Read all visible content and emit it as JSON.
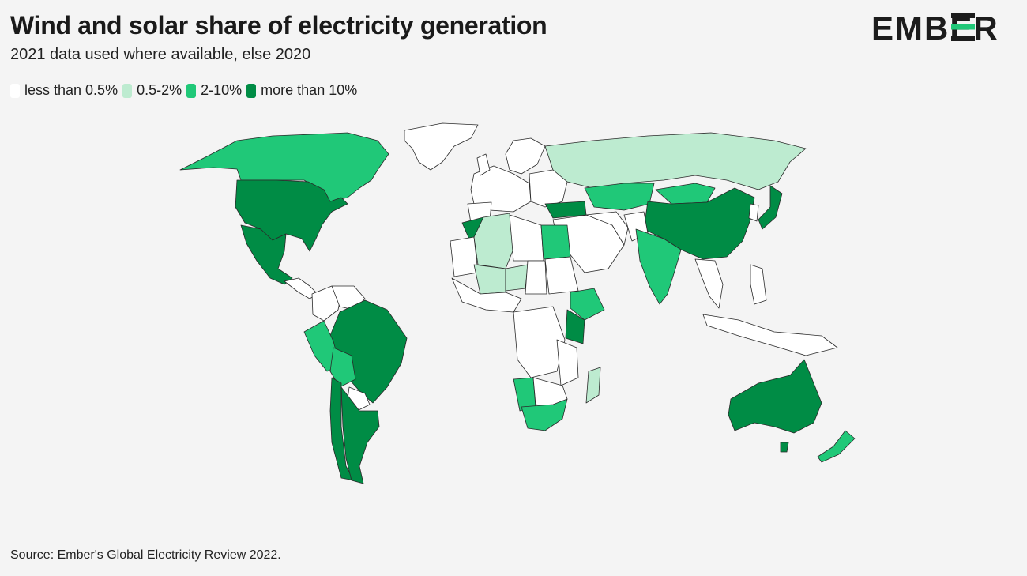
{
  "header": {
    "title": "Wind and solar share of electricity generation",
    "subtitle": "2021 data used where available, else 2020",
    "logo_text": "EMBER"
  },
  "legend": {
    "items": [
      {
        "label": "less than 0.5%",
        "color": "#ffffff"
      },
      {
        "label": "0.5-2%",
        "color": "#bdebd0"
      },
      {
        "label": "2-10%",
        "color": "#20c878"
      },
      {
        "label": "more than 10%",
        "color": "#008c45"
      }
    ]
  },
  "map": {
    "type": "choropleth",
    "bins": [
      "less than 0.5%",
      "0.5-2%",
      "2-10%",
      "more than 10%"
    ],
    "regions": {
      "Canada": "2-10%",
      "USA": "more than 10%",
      "Mexico": "more than 10%",
      "Greenland": "less than 0.5%",
      "Brazil": "more than 10%",
      "Argentina": "more than 10%",
      "Chile": "more than 10%",
      "Peru": "2-10%",
      "Colombia": "less than 0.5%",
      "Venezuela": "less than 0.5%",
      "Bolivia": "2-10%",
      "Paraguay": "less than 0.5%",
      "Uruguay": "more than 10%",
      "Russia": "0.5-2%",
      "China": "more than 10%",
      "India": "2-10%",
      "Kazakhstan": "2-10%",
      "Mongolia": "2-10%",
      "Saudi Arabia": "less than 0.5%",
      "Iran": "less than 0.5%",
      "Turkey": "more than 10%",
      "Japan": "more than 10%",
      "Australia": "more than 10%",
      "New Zealand": "2-10%",
      "Indonesia": "less than 0.5%",
      "Algeria": "0.5-2%",
      "Libya": "less than 0.5%",
      "Egypt": "2-10%",
      "Morocco": "more than 10%",
      "Kenya": "more than 10%",
      "Ethiopia": "2-10%",
      "DR Congo": "less than 0.5%",
      "South Africa": "2-10%",
      "Namibia": "2-10%",
      "Madagascar": "0.5-2%",
      "Sudan": "less than 0.5%",
      "Niger": "0.5-2%",
      "Chad": "less than 0.5%",
      "Mali": "0.5-2%"
    }
  },
  "source": "Source: Ember's Global Electricity Review 2022."
}
